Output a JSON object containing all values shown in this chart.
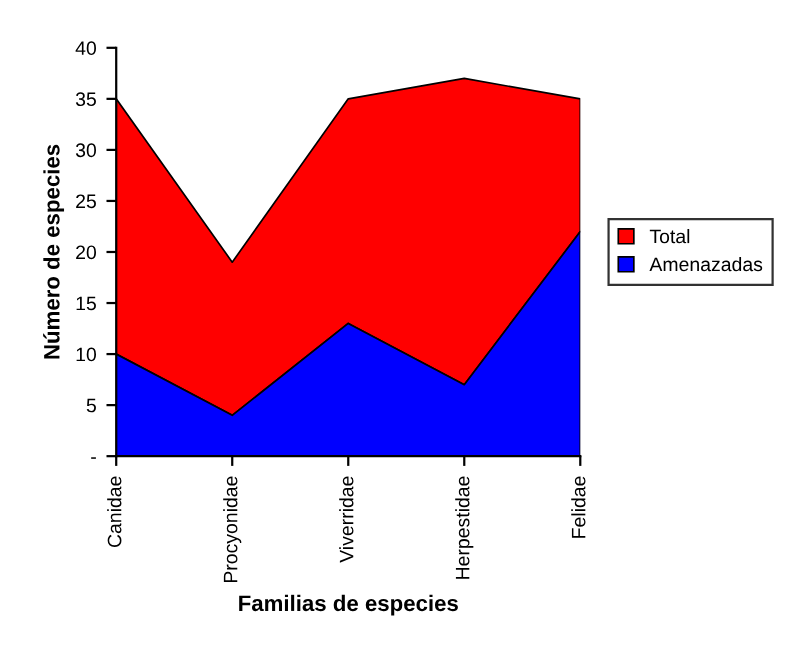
{
  "chart_data": {
    "type": "area",
    "xlabel": "Familias de especies",
    "ylabel": "Número de especies",
    "categories": [
      "Canidae",
      "Procyonidae",
      "Viverridae",
      "Herpestidae",
      "Felidae"
    ],
    "series": [
      {
        "name": "Total",
        "color": "#ff0000",
        "values": [
          35,
          19,
          35,
          37,
          35
        ]
      },
      {
        "name": "Amenazadas",
        "color": "#0000ff",
        "values": [
          10,
          4,
          13,
          7,
          22
        ]
      }
    ],
    "ylim": [
      0,
      40
    ],
    "yticks": [
      {
        "value": 0,
        "label": "-"
      },
      5,
      10,
      15,
      20,
      25,
      30,
      35,
      40
    ],
    "grid": false,
    "legend": "right"
  }
}
